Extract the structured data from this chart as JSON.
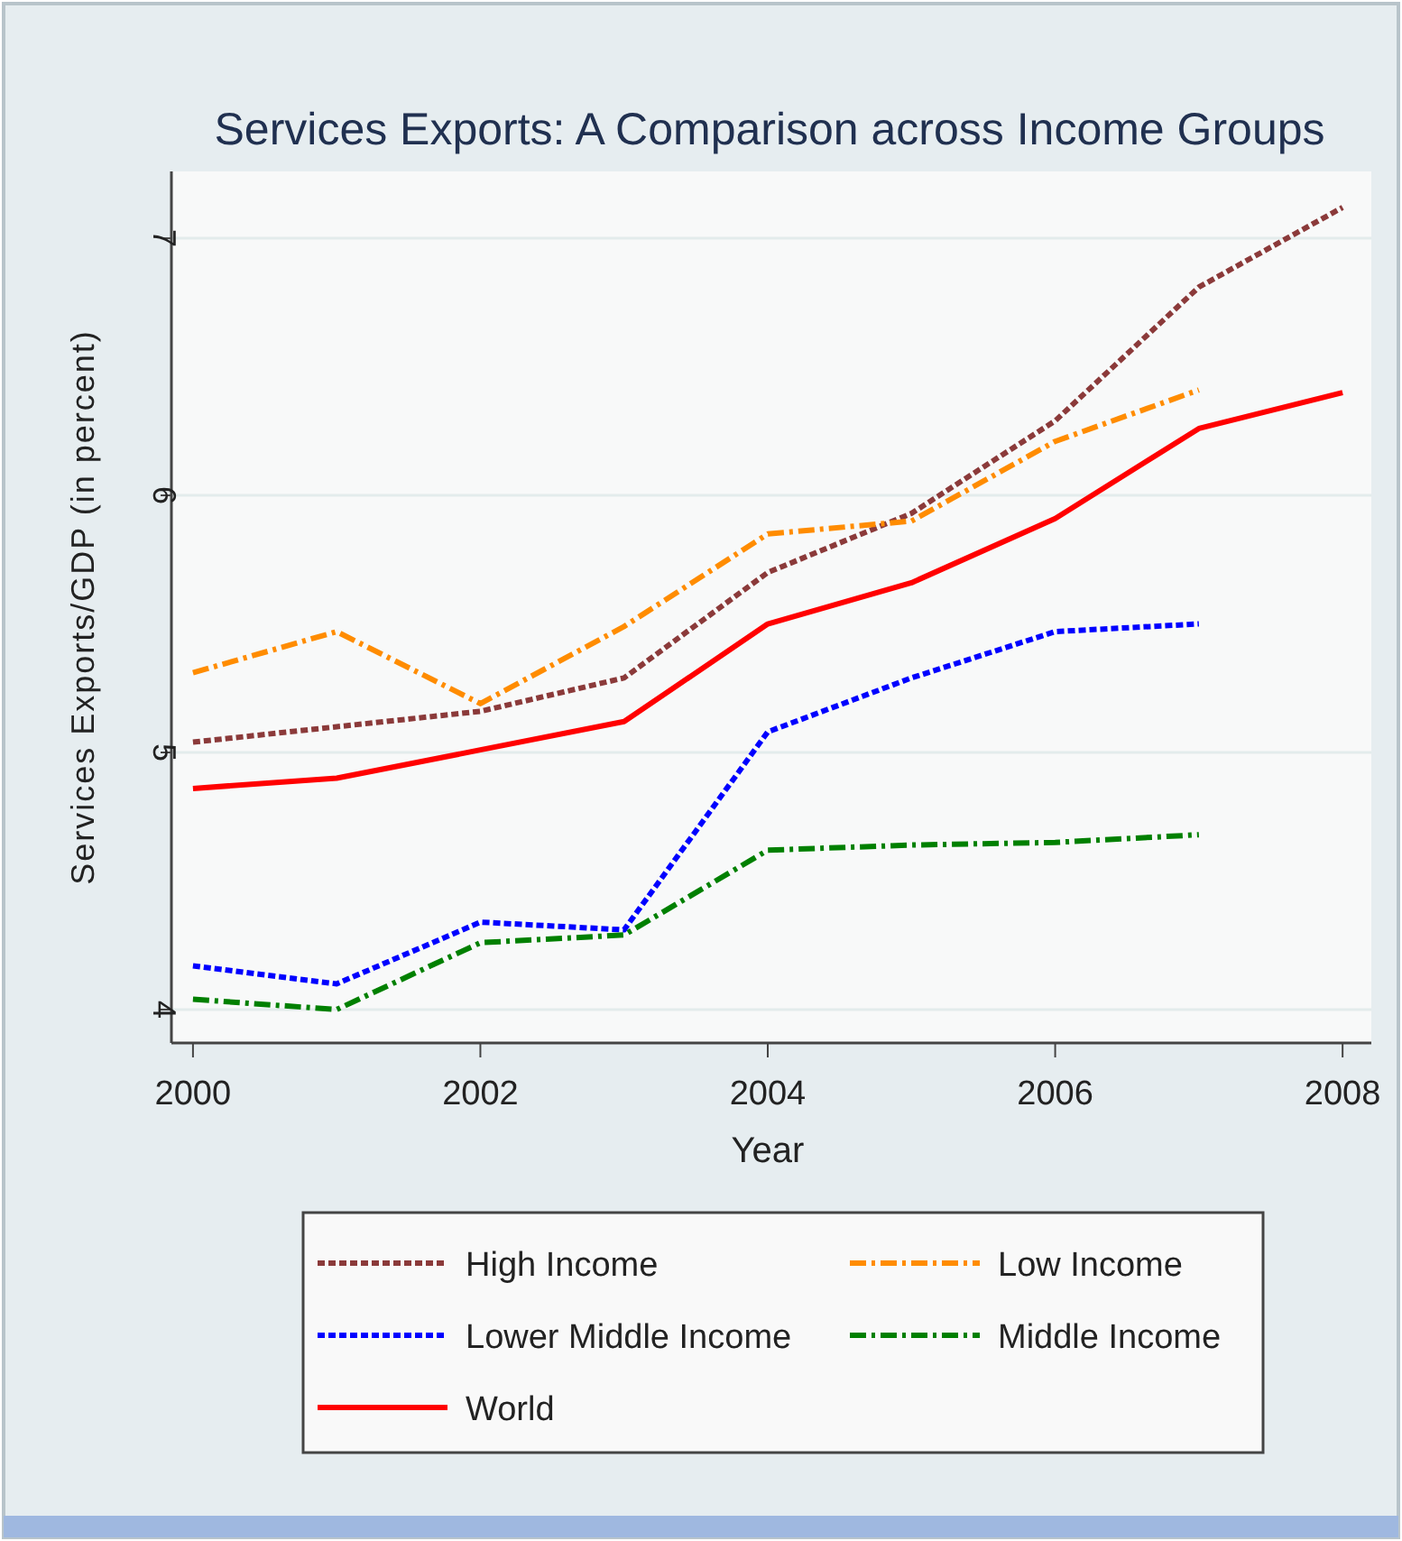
{
  "chart_data": {
    "type": "line",
    "title": "Services Exports: A Comparison across Income Groups",
    "xlabel": "Year",
    "ylabel": "Services Exports/GDP (in percent)",
    "x": [
      2000,
      2001,
      2002,
      2003,
      2004,
      2005,
      2006,
      2007,
      2008
    ],
    "xlim": [
      1999.85,
      2008.2
    ],
    "ylim": [
      3.87,
      7.26
    ],
    "xticks": [
      2000,
      2002,
      2004,
      2006,
      2008
    ],
    "yticks": [
      4,
      5,
      6,
      7
    ],
    "grid": "y",
    "legend": "bottom",
    "series": [
      {
        "name": "High Income",
        "color": "#8b3a3a",
        "line_style": "dotted",
        "values": [
          5.04,
          5.1,
          5.16,
          5.29,
          5.7,
          5.93,
          6.29,
          6.81,
          7.12
        ]
      },
      {
        "name": "Low Income",
        "color": "#ff8c00",
        "line_style": "dashed",
        "values": [
          5.31,
          5.47,
          5.19,
          5.49,
          5.85,
          5.9,
          6.21,
          6.41,
          null
        ]
      },
      {
        "name": "Lower Middle Income",
        "color": "#0000ff",
        "line_style": "dotted",
        "values": [
          4.17,
          4.1,
          4.34,
          4.31,
          5.08,
          5.29,
          5.47,
          5.5,
          null
        ]
      },
      {
        "name": "Middle Income",
        "color": "#008000",
        "line_style": "dashed",
        "values": [
          4.04,
          4.0,
          4.26,
          4.29,
          4.62,
          4.64,
          4.65,
          4.68,
          null
        ]
      },
      {
        "name": "World",
        "color": "#ff0000",
        "line_style": "solid",
        "values": [
          4.86,
          4.9,
          5.01,
          5.12,
          5.5,
          5.66,
          5.91,
          6.26,
          6.4
        ]
      }
    ]
  }
}
